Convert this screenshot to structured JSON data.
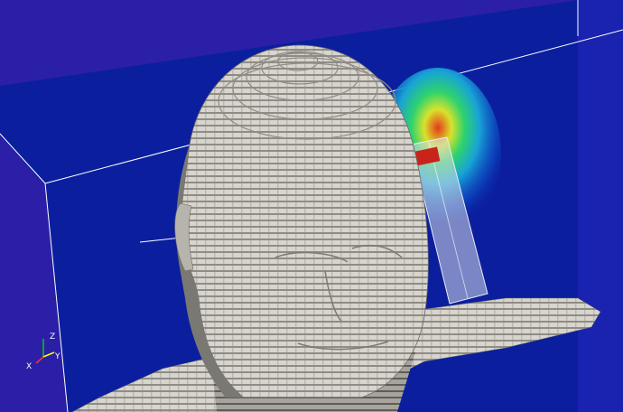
{
  "scene": {
    "background_color": "#2b1fa8",
    "plane_color": "#0b1f9e",
    "model_color": "#d9d6cf",
    "edge_color": "#ffffff",
    "field_colors": [
      "#0d4fc7",
      "#18a3d6",
      "#2ed36d",
      "#d9e22b",
      "#e53a1b"
    ]
  },
  "axes": {
    "z_label": "Z",
    "y_label": "Y",
    "x_label": "X",
    "z_color": "#00d000",
    "y_color": "#ffff00",
    "x_color": "#ff3030"
  }
}
